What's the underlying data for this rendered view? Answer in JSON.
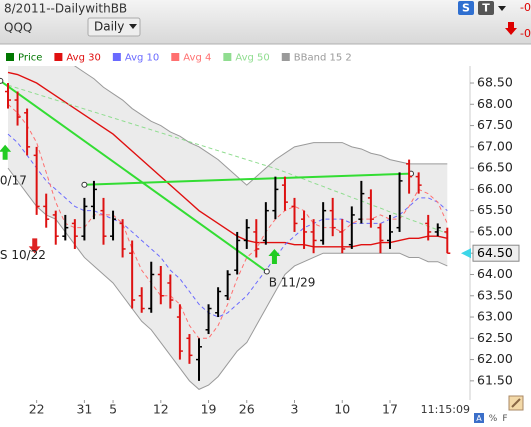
{
  "header": {
    "title": "8/2011--DailywithBB",
    "symbol": "QQQ",
    "period": "Daily",
    "buttons": [
      "S",
      "T"
    ],
    "changes": [
      "-0",
      "-0"
    ]
  },
  "footer": {
    "time": "11:15:09",
    "icons": [
      "A",
      "%",
      "F"
    ]
  },
  "chart_data": {
    "type": "ohlc",
    "categories": [
      null,
      null,
      null,
      "22",
      null,
      null,
      null,
      null,
      "31",
      null,
      null,
      "5",
      null,
      null,
      null,
      null,
      "12",
      null,
      null,
      null,
      null,
      "19",
      null,
      null,
      null,
      "26",
      null,
      null,
      null,
      null,
      "3",
      null,
      null,
      null,
      null,
      "10",
      null,
      null,
      null,
      null,
      "17",
      null,
      null,
      null,
      null,
      null,
      null
    ],
    "ylim": [
      61.05,
      68.9
    ],
    "yticks": [
      {
        "value": 61.5,
        "label": "61.50"
      },
      {
        "value": 62,
        "label": "62.00"
      },
      {
        "value": 62.5,
        "label": "62.50"
      },
      {
        "value": 63,
        "label": "63.00"
      },
      {
        "value": 63.5,
        "label": "63.50"
      },
      {
        "value": 64,
        "label": "64.00"
      },
      {
        "value": 64.5,
        "label": "64.50"
      },
      {
        "value": 65,
        "label": "65.00"
      },
      {
        "value": 65.5,
        "label": "65.50"
      },
      {
        "value": 66,
        "label": "66.00"
      },
      {
        "value": 66.5,
        "label": "66.50"
      },
      {
        "value": 67,
        "label": "67.00"
      },
      {
        "value": 67.5,
        "label": "67.50"
      },
      {
        "value": 68,
        "label": "68.00"
      },
      {
        "value": 68.5,
        "label": "68.50"
      }
    ],
    "price": {
      "name": "Price",
      "color": "#000000",
      "down_color": "#dd1111",
      "legend_color": "#007700",
      "open": [
        68.3,
        68.1,
        67.8,
        66.8,
        65.6,
        65.4,
        64.9,
        65.2,
        64.9,
        65.6,
        65.5,
        64.9,
        65.2,
        64.5,
        63.5,
        63.2,
        64.0,
        63.8,
        63.0,
        62.5,
        62.0,
        62.7,
        63.1,
        63.5,
        64.1,
        64.8,
        65.0,
        64.8,
        65.5,
        66.1,
        65.6,
        65.3,
        65.0,
        64.8,
        65.5,
        65.0,
        64.7,
        65.3,
        65.8,
        65.1,
        64.8,
        65.1,
        66.6,
        66.3,
        65.2,
        65.0,
        65.0
      ],
      "high": [
        68.5,
        68.3,
        67.9,
        67.0,
        65.9,
        65.5,
        65.4,
        65.3,
        65.8,
        66.2,
        65.8,
        65.5,
        65.3,
        64.8,
        63.7,
        64.3,
        64.2,
        64.0,
        63.3,
        62.6,
        62.5,
        63.3,
        63.7,
        64.1,
        65.0,
        65.3,
        65.3,
        65.7,
        66.3,
        66.3,
        65.8,
        65.5,
        65.3,
        65.7,
        65.8,
        65.3,
        65.6,
        66.2,
        66.0,
        65.2,
        65.4,
        66.4,
        66.7,
        66.4,
        65.4,
        65.2,
        65.1
      ],
      "low": [
        67.9,
        67.5,
        66.8,
        65.4,
        65.1,
        64.7,
        64.8,
        64.6,
        64.8,
        65.3,
        64.7,
        64.8,
        64.4,
        63.2,
        63.1,
        63.1,
        63.3,
        63.2,
        62.0,
        61.9,
        61.5,
        62.6,
        63.0,
        63.4,
        64.0,
        64.6,
        64.4,
        64.7,
        65.3,
        65.5,
        65.0,
        64.6,
        64.5,
        64.7,
        64.9,
        64.5,
        64.6,
        65.2,
        65.1,
        64.5,
        64.6,
        65.0,
        65.9,
        65.9,
        64.8,
        64.9,
        64.5
      ],
      "close": [
        68.1,
        67.7,
        67.0,
        65.6,
        65.3,
        64.9,
        65.1,
        64.9,
        65.6,
        66.0,
        64.9,
        65.3,
        64.6,
        63.4,
        63.2,
        64.0,
        63.5,
        63.4,
        62.2,
        62.1,
        62.3,
        63.2,
        63.6,
        64.0,
        64.8,
        65.1,
        64.6,
        65.5,
        66.0,
        65.7,
        65.2,
        65.0,
        64.8,
        65.5,
        65.1,
        64.6,
        65.4,
        65.9,
        65.3,
        64.8,
        65.0,
        66.2,
        66.3,
        66.1,
        65.0,
        65.1,
        64.5
      ]
    },
    "series": [
      {
        "name": "Avg 30",
        "color": "#e01010",
        "dashed": false,
        "values": [
          68.75,
          68.7,
          68.6,
          68.5,
          68.35,
          68.2,
          68.05,
          67.9,
          67.75,
          67.6,
          67.45,
          67.3,
          67.1,
          66.9,
          66.7,
          66.5,
          66.3,
          66.1,
          65.9,
          65.7,
          65.5,
          65.35,
          65.2,
          65.05,
          64.9,
          64.8,
          64.75,
          64.75,
          64.75,
          64.75,
          64.7,
          64.7,
          64.65,
          64.65,
          64.65,
          64.65,
          64.65,
          64.7,
          64.7,
          64.75,
          64.75,
          64.8,
          64.85,
          64.85,
          64.9,
          64.9,
          64.85
        ]
      },
      {
        "name": "Avg 10",
        "color": "#6a6aff",
        "dashed": true,
        "values": [
          67.3,
          67.1,
          66.8,
          66.5,
          66.2,
          66.0,
          65.8,
          65.6,
          65.5,
          65.5,
          65.4,
          65.3,
          65.2,
          65.0,
          64.8,
          64.6,
          64.4,
          64.1,
          63.9,
          63.6,
          63.3,
          63.1,
          63.0,
          63.1,
          63.3,
          63.5,
          63.8,
          64.1,
          64.4,
          64.7,
          64.9,
          65.1,
          65.2,
          65.3,
          65.3,
          65.3,
          65.2,
          65.2,
          65.2,
          65.2,
          65.3,
          65.4,
          65.6,
          65.8,
          65.8,
          65.7,
          65.5
        ]
      },
      {
        "name": "Avg 4",
        "color": "#ff7070",
        "dashed": true,
        "values": [
          68.0,
          67.8,
          67.5,
          67.1,
          66.4,
          65.7,
          65.2,
          65.1,
          65.1,
          65.4,
          65.4,
          65.4,
          65.2,
          64.6,
          64.1,
          63.8,
          63.5,
          63.5,
          63.3,
          62.8,
          62.5,
          62.5,
          62.8,
          63.3,
          63.9,
          64.4,
          64.6,
          65.0,
          65.3,
          65.5,
          65.6,
          65.5,
          65.2,
          65.1,
          65.1,
          65.0,
          65.2,
          65.3,
          65.3,
          65.4,
          65.3,
          65.3,
          65.6,
          66.0,
          65.9,
          65.7,
          65.2
        ]
      },
      {
        "name": "Avg 50",
        "color": "#90dd90",
        "dashed": true,
        "values": [
          68.45,
          68.38,
          68.31,
          68.24,
          68.17,
          68.1,
          68.03,
          67.96,
          67.89,
          67.82,
          67.75,
          67.68,
          67.61,
          67.54,
          67.47,
          67.4,
          67.33,
          67.26,
          67.19,
          67.12,
          67.05,
          66.98,
          66.91,
          66.84,
          66.77,
          66.7,
          66.63,
          66.56,
          66.49,
          66.41,
          66.32,
          66.24,
          66.15,
          66.07,
          65.98,
          65.9,
          65.81,
          65.73,
          65.64,
          65.56,
          65.47,
          65.39,
          65.3,
          65.22,
          65.13,
          65.05,
          64.96
        ]
      }
    ],
    "bband": {
      "name": "BBand 15 2",
      "color": "#9a9a9a",
      "fill": "#ebebeb",
      "upper": [
        69.5,
        69.45,
        69.4,
        69.35,
        69.3,
        69.2,
        69.05,
        68.9,
        68.75,
        68.6,
        68.4,
        68.25,
        68.1,
        67.9,
        67.75,
        67.6,
        67.5,
        67.35,
        67.25,
        67.1,
        67.0,
        66.85,
        66.7,
        66.5,
        66.3,
        66.1,
        66.3,
        66.5,
        66.7,
        66.85,
        67.0,
        67.05,
        67.1,
        67.1,
        67.1,
        67.1,
        67.0,
        66.95,
        66.85,
        66.8,
        66.7,
        66.65,
        66.6,
        66.6,
        66.6,
        66.6,
        66.6
      ],
      "lower": [
        66.5,
        66.2,
        65.9,
        65.6,
        65.4,
        65.3,
        65.0,
        64.7,
        64.4,
        64.2,
        64.0,
        63.8,
        63.5,
        63.2,
        62.9,
        62.7,
        62.4,
        62.1,
        61.8,
        61.5,
        61.3,
        61.4,
        61.6,
        61.9,
        62.2,
        62.4,
        62.8,
        63.2,
        63.6,
        64.0,
        64.2,
        64.3,
        64.4,
        64.5,
        64.5,
        64.5,
        64.5,
        64.5,
        64.5,
        64.5,
        64.5,
        64.5,
        64.4,
        64.4,
        64.3,
        64.3,
        64.2
      ]
    },
    "trendlines": [
      {
        "color": "#33dd33",
        "x": [
          -0.8,
          27.1
        ],
        "y": [
          68.55,
          64.07
        ]
      },
      {
        "color": "#33dd33",
        "x": [
          8,
          42.2
        ],
        "y": [
          66.11,
          66.37
        ]
      }
    ],
    "markers": [
      {
        "direction": "up",
        "x": -0.3,
        "y": 67.05,
        "color": "#22cc22"
      },
      {
        "direction": "down",
        "x": 2.8,
        "y": 64.85,
        "color": "#dd2222"
      },
      {
        "direction": "up",
        "x": 27.9,
        "y": 64.6,
        "color": "#22cc22"
      }
    ],
    "annotations": [
      {
        "text": "0/17",
        "x": -0.85,
        "y": 66.2
      },
      {
        "text": "S 10/22",
        "x": -0.85,
        "y": 64.45
      },
      {
        "text": "B 11/29",
        "x": 27.3,
        "y": 63.8
      }
    ],
    "last_price": {
      "value": 64.5,
      "label": "64.50"
    }
  }
}
